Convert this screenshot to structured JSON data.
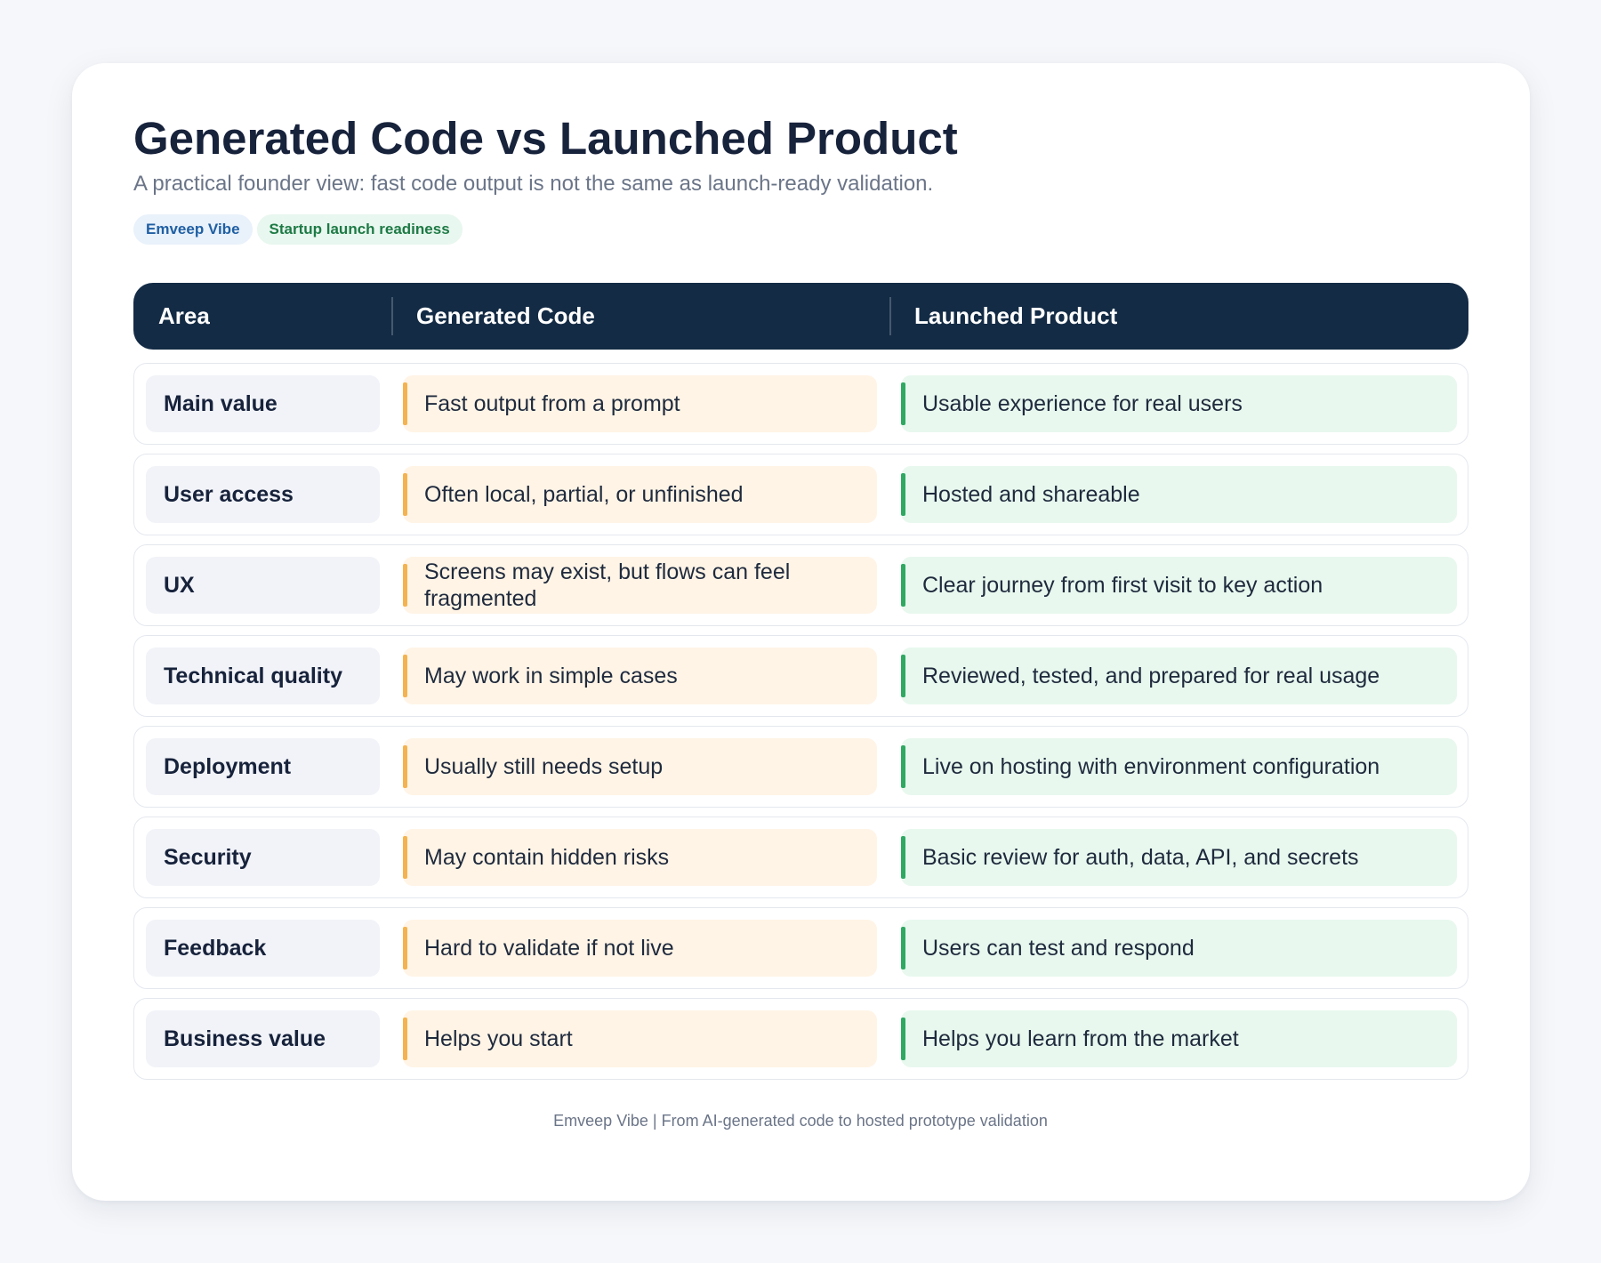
{
  "header": {
    "title": "Generated Code vs Launched Product",
    "subtitle": "A practical founder view: fast code output is not the same as launch-ready validation.",
    "tags": [
      {
        "label": "Emveep Vibe",
        "color": "#1f5fa3"
      },
      {
        "label": "Startup launch readiness",
        "color": "#1d7a45"
      }
    ]
  },
  "table": {
    "columns": [
      "Area",
      "Generated Code",
      "Launched Product"
    ],
    "rows": [
      {
        "area": "Main value",
        "generated": "Fast output from a prompt",
        "launched": "Usable experience for real users"
      },
      {
        "area": "User access",
        "generated": "Often local, partial, or unfinished",
        "launched": "Hosted and shareable"
      },
      {
        "area": "UX",
        "generated": "Screens may exist, but flows can feel fragmented",
        "launched": "Clear journey from first visit to key action"
      },
      {
        "area": "Technical quality",
        "generated": "May work in simple cases",
        "launched": "Reviewed, tested, and prepared for real usage"
      },
      {
        "area": "Deployment",
        "generated": "Usually still needs setup",
        "launched": "Live on hosting with environment configuration"
      },
      {
        "area": "Security",
        "generated": "May contain hidden risks",
        "launched": "Basic review for auth, data, API, and secrets"
      },
      {
        "area": "Feedback",
        "generated": "Hard to validate if not live",
        "launched": "Users can test and respond"
      },
      {
        "area": "Business value",
        "generated": "Helps you start",
        "launched": "Helps you learn from the market"
      }
    ]
  },
  "colors": {
    "header_bg": "#132b45",
    "generated_accent": "#f4b350",
    "launched_accent": "#2fa862"
  },
  "footer": {
    "text": "Emveep Vibe | From AI-generated code to hosted prototype validation"
  }
}
